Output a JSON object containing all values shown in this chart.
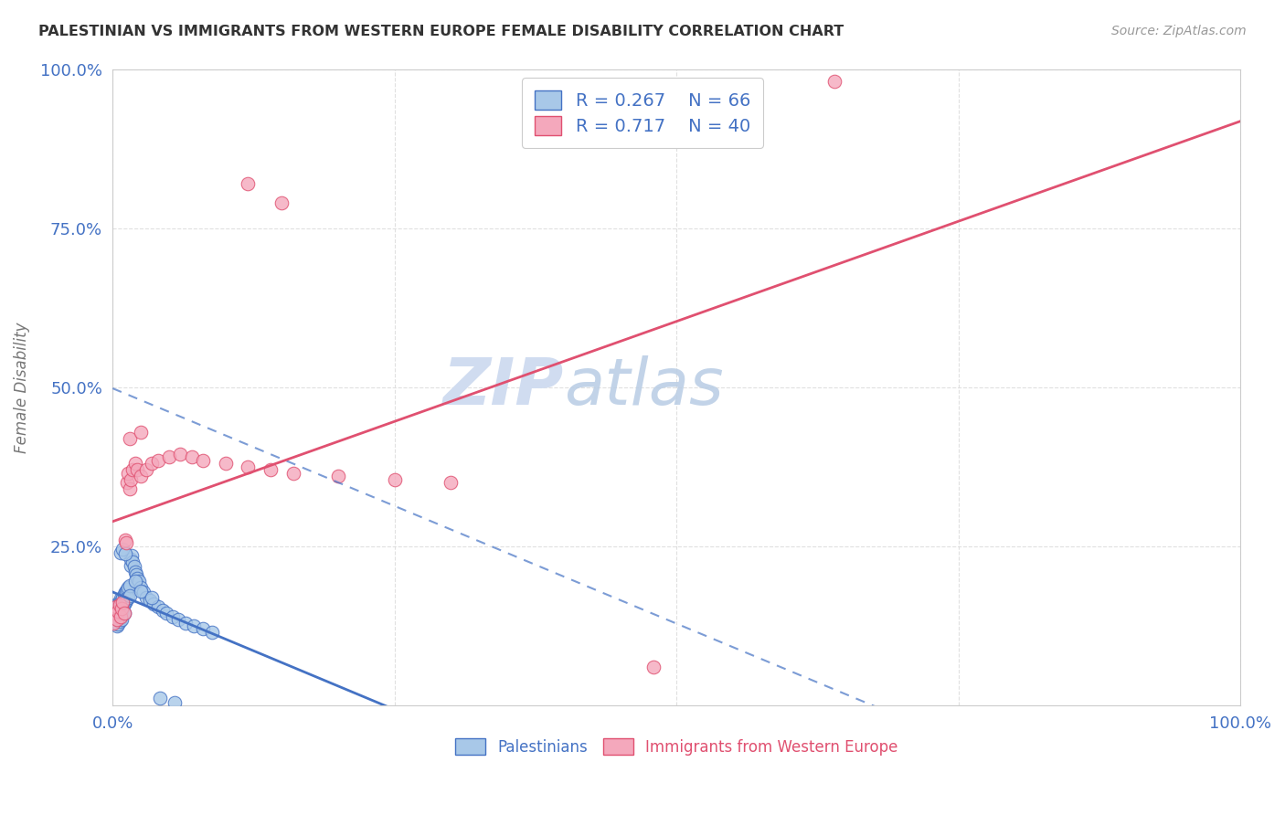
{
  "title": "PALESTINIAN VS IMMIGRANTS FROM WESTERN EUROPE FEMALE DISABILITY CORRELATION CHART",
  "source": "Source: ZipAtlas.com",
  "ylabel": "Female Disability",
  "xlim": [
    0,
    1
  ],
  "ylim": [
    0,
    1
  ],
  "legend_R_blue": "0.267",
  "legend_N_blue": "66",
  "legend_R_pink": "0.717",
  "legend_N_pink": "40",
  "blue_color": "#A8C8E8",
  "pink_color": "#F4A8BC",
  "blue_line_color": "#4472C4",
  "pink_line_color": "#E05070",
  "watermark_color": "#D0DCF0",
  "grid_color": "#DDDDDD",
  "background_color": "#FFFFFF",
  "pal_x": [
    0.001,
    0.002,
    0.002,
    0.003,
    0.003,
    0.004,
    0.004,
    0.004,
    0.005,
    0.005,
    0.005,
    0.006,
    0.006,
    0.006,
    0.007,
    0.007,
    0.007,
    0.008,
    0.008,
    0.008,
    0.009,
    0.009,
    0.01,
    0.01,
    0.01,
    0.011,
    0.011,
    0.012,
    0.012,
    0.013,
    0.013,
    0.014,
    0.014,
    0.015,
    0.015,
    0.016,
    0.016,
    0.017,
    0.018,
    0.019,
    0.02,
    0.021,
    0.022,
    0.023,
    0.025,
    0.027,
    0.03,
    0.033,
    0.036,
    0.04,
    0.044,
    0.048,
    0.053,
    0.058,
    0.065,
    0.072,
    0.08,
    0.088,
    0.007,
    0.009,
    0.011,
    0.02,
    0.025,
    0.035,
    0.042,
    0.055
  ],
  "pal_y": [
    0.145,
    0.155,
    0.135,
    0.148,
    0.13,
    0.16,
    0.14,
    0.125,
    0.158,
    0.142,
    0.128,
    0.162,
    0.145,
    0.132,
    0.168,
    0.15,
    0.138,
    0.165,
    0.148,
    0.135,
    0.17,
    0.155,
    0.175,
    0.16,
    0.145,
    0.178,
    0.162,
    0.18,
    0.165,
    0.183,
    0.168,
    0.185,
    0.17,
    0.188,
    0.172,
    0.22,
    0.23,
    0.235,
    0.225,
    0.218,
    0.21,
    0.205,
    0.2,
    0.195,
    0.185,
    0.178,
    0.17,
    0.165,
    0.16,
    0.155,
    0.15,
    0.145,
    0.14,
    0.135,
    0.13,
    0.125,
    0.12,
    0.115,
    0.24,
    0.245,
    0.238,
    0.195,
    0.18,
    0.17,
    0.012,
    0.005
  ],
  "we_x": [
    0.001,
    0.002,
    0.003,
    0.004,
    0.005,
    0.006,
    0.007,
    0.008,
    0.009,
    0.01,
    0.011,
    0.012,
    0.013,
    0.014,
    0.015,
    0.016,
    0.018,
    0.02,
    0.022,
    0.025,
    0.03,
    0.035,
    0.04,
    0.05,
    0.06,
    0.07,
    0.08,
    0.1,
    0.12,
    0.14,
    0.16,
    0.2,
    0.25,
    0.3,
    0.12,
    0.15,
    0.48,
    0.64,
    0.015,
    0.025
  ],
  "we_y": [
    0.13,
    0.145,
    0.155,
    0.135,
    0.148,
    0.158,
    0.14,
    0.152,
    0.162,
    0.145,
    0.26,
    0.255,
    0.35,
    0.365,
    0.34,
    0.355,
    0.37,
    0.38,
    0.37,
    0.36,
    0.37,
    0.38,
    0.385,
    0.39,
    0.395,
    0.39,
    0.385,
    0.38,
    0.375,
    0.37,
    0.365,
    0.36,
    0.355,
    0.35,
    0.82,
    0.79,
    0.06,
    0.98,
    0.42,
    0.43
  ]
}
